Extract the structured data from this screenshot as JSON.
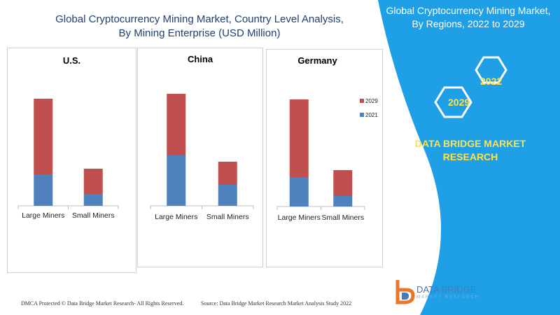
{
  "title": {
    "line1": "Global Cryptocurrency Mining Market, Country Level Analysis,",
    "line2": "By Mining Enterprise (USD Million)"
  },
  "banner": {
    "line1": "Global Cryptocurrency Mining Market,",
    "line2": "By Regions, 2022 to 2029",
    "hex_top": "2022",
    "hex_bottom": "2029",
    "brand_line1": "DATA BRIDGE MARKET",
    "brand_line2": "RESEARCH"
  },
  "colors": {
    "series_2021": "#4f81bd",
    "series_2029": "#c0504d",
    "banner": "#1e9fe6",
    "accent": "#ffe14d"
  },
  "footer": {
    "left": "DMCA Protected © Data Bridge Market Research- All Rights Reserved.",
    "right": "Source: Data Bridge Market Research Market Analysis Study 2022"
  },
  "logo": {
    "line1": "DATA BRIDGE",
    "line2": "MARKET RESEARCH"
  },
  "chart_data": [
    {
      "type": "bar",
      "stacked": true,
      "title": "U.S.",
      "categories": [
        "Large Miners",
        "Small Miners"
      ],
      "series": [
        {
          "name": "2021",
          "values": [
            45,
            17
          ]
        },
        {
          "name": "2029",
          "values": [
            108,
            36
          ]
        }
      ],
      "ylim": [
        0,
        160
      ]
    },
    {
      "type": "bar",
      "stacked": true,
      "title": "China",
      "categories": [
        "Large Miners",
        "Small Miners"
      ],
      "series": [
        {
          "name": "2021",
          "values": [
            72,
            30
          ]
        },
        {
          "name": "2029",
          "values": [
            88,
            33
          ]
        }
      ],
      "ylim": [
        0,
        160
      ]
    },
    {
      "type": "bar",
      "stacked": true,
      "title": "Germany",
      "categories": [
        "Large Miners",
        "Small Miners"
      ],
      "series": [
        {
          "name": "2021",
          "values": [
            42,
            15
          ]
        },
        {
          "name": "2029",
          "values": [
            111,
            37
          ]
        }
      ],
      "ylim": [
        0,
        160
      ],
      "legend": "right"
    }
  ]
}
